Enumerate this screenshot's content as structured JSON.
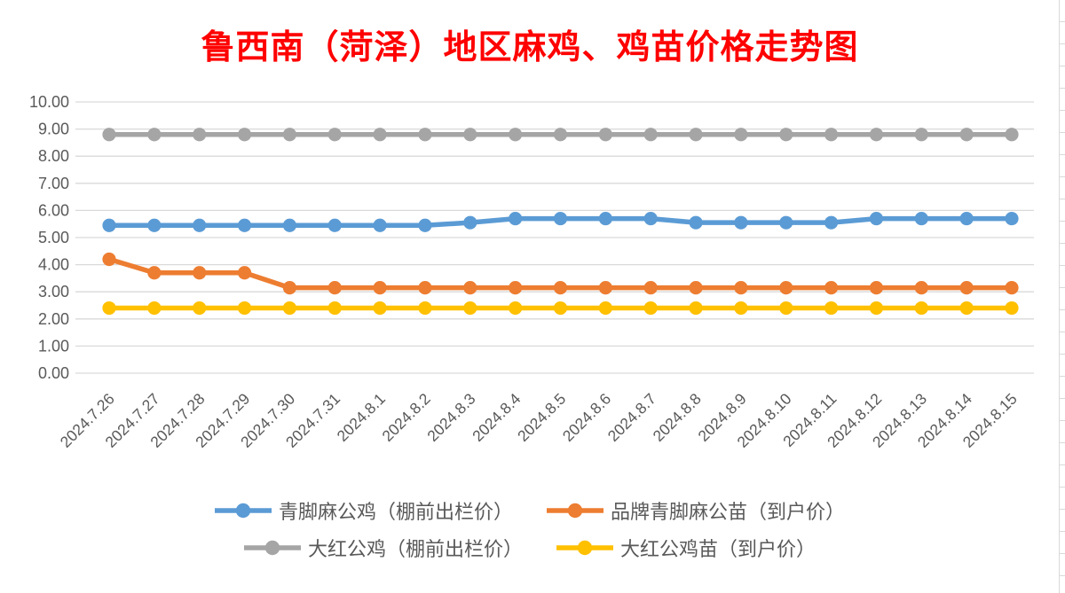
{
  "chart_data": {
    "type": "line",
    "title": "鲁西南（菏泽）地区麻鸡、鸡苗价格走势图",
    "title_color": "#FF0000",
    "categories": [
      "2024.7.26",
      "2024.7.27",
      "2024.7.28",
      "2024.7.29",
      "2024.7.30",
      "2024.7.31",
      "2024.8.1",
      "2024.8.2",
      "2024.8.3",
      "2024.8.4",
      "2024.8.5",
      "2024.8.6",
      "2024.8.7",
      "2024.8.8",
      "2024.8.9",
      "2024.8.10",
      "2024.8.11",
      "2024.8.12",
      "2024.8.13",
      "2024.8.14",
      "2024.8.15"
    ],
    "series": [
      {
        "name": "青脚麻公鸡（棚前出栏价）",
        "color": "#5B9BD5",
        "values": [
          5.45,
          5.45,
          5.45,
          5.45,
          5.45,
          5.45,
          5.45,
          5.45,
          5.55,
          5.7,
          5.7,
          5.7,
          5.7,
          5.55,
          5.55,
          5.55,
          5.55,
          5.7,
          5.7,
          5.7,
          5.7
        ]
      },
      {
        "name": "品牌青脚麻公苗（到户价）",
        "color": "#ED7D31",
        "values": [
          4.2,
          3.7,
          3.7,
          3.7,
          3.15,
          3.15,
          3.15,
          3.15,
          3.15,
          3.15,
          3.15,
          3.15,
          3.15,
          3.15,
          3.15,
          3.15,
          3.15,
          3.15,
          3.15,
          3.15,
          3.15
        ]
      },
      {
        "name": "大红公鸡（棚前出栏价）",
        "color": "#A5A5A5",
        "values": [
          8.8,
          8.8,
          8.8,
          8.8,
          8.8,
          8.8,
          8.8,
          8.8,
          8.8,
          8.8,
          8.8,
          8.8,
          8.8,
          8.8,
          8.8,
          8.8,
          8.8,
          8.8,
          8.8,
          8.8,
          8.8
        ]
      },
      {
        "name": "大红公鸡苗（到户价）",
        "color": "#FFC000",
        "values": [
          2.4,
          2.4,
          2.4,
          2.4,
          2.4,
          2.4,
          2.4,
          2.4,
          2.4,
          2.4,
          2.4,
          2.4,
          2.4,
          2.4,
          2.4,
          2.4,
          2.4,
          2.4,
          2.4,
          2.4,
          2.4
        ]
      }
    ],
    "ylim": [
      0,
      10
    ],
    "ytick_labels": [
      "0.00",
      "1.00",
      "2.00",
      "3.00",
      "4.00",
      "5.00",
      "6.00",
      "7.00",
      "8.00",
      "9.00",
      "10.00"
    ],
    "grid": true,
    "gridline_color": "#D9D9D9",
    "axis_text_color": "#595959",
    "legend_position": "bottom",
    "legend_rows": [
      [
        0,
        1
      ],
      [
        2,
        3
      ]
    ]
  }
}
